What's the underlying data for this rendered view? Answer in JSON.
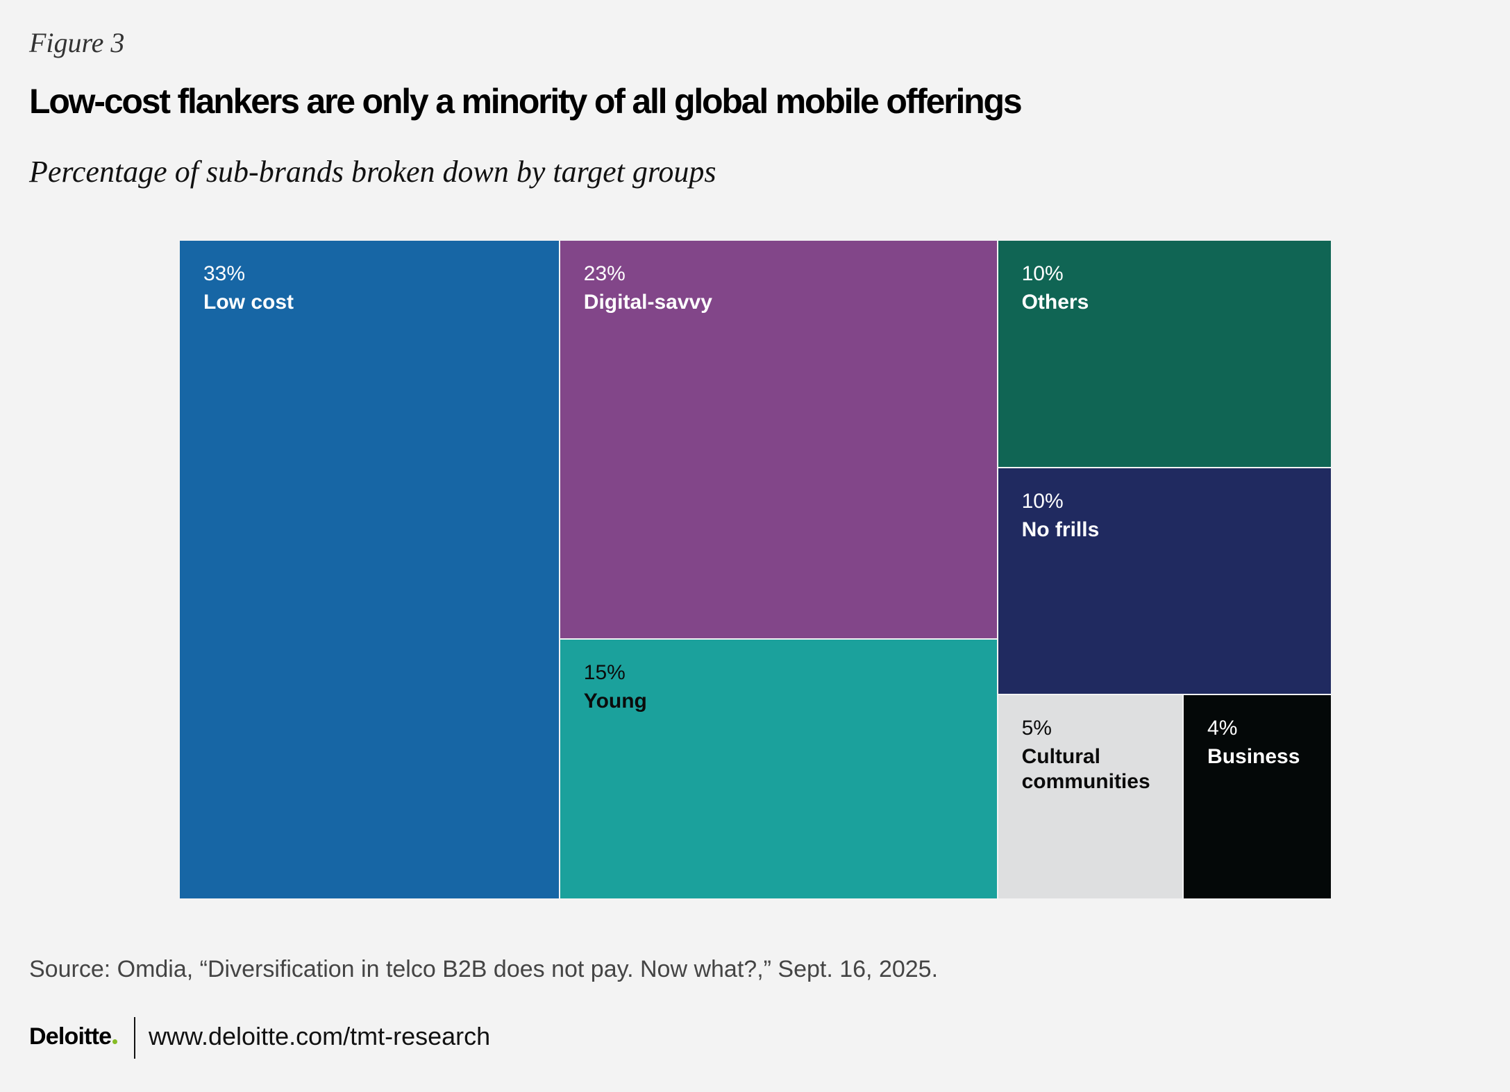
{
  "header": {
    "figure_label": "Figure 3",
    "title": "Low-cost flankers are only a minority of all global mobile offerings",
    "subtitle": "Percentage of sub-brands broken down by target groups"
  },
  "chart_data": {
    "type": "treemap",
    "title": "Low-cost flankers are only a minority of all global mobile offerings",
    "subtitle": "Percentage of sub-brands broken down by target groups",
    "unit": "%",
    "items": [
      {
        "label": "Low cost",
        "value": 33,
        "value_label": "33%",
        "color": "#1766a5",
        "text_color": "#ffffff"
      },
      {
        "label": "Digital-savvy",
        "value": 23,
        "value_label": "23%",
        "color": "#824689",
        "text_color": "#ffffff"
      },
      {
        "label": "Young",
        "value": 15,
        "value_label": "15%",
        "color": "#1ba19c",
        "text_color": "#0b0b0b"
      },
      {
        "label": "Others",
        "value": 10,
        "value_label": "10%",
        "color": "#106554",
        "text_color": "#ffffff"
      },
      {
        "label": "No frills",
        "value": 10,
        "value_label": "10%",
        "color": "#202a60",
        "text_color": "#ffffff"
      },
      {
        "label": "Cultural\ncommunities",
        "value": 5,
        "value_label": "5%",
        "color": "#dedfe0",
        "text_color": "#0b0b0b"
      },
      {
        "label": "Business",
        "value": 4,
        "value_label": "4%",
        "color": "#040808",
        "text_color": "#ffffff"
      }
    ]
  },
  "footer": {
    "source": "Source: Omdia, “Diversification in telco B2B does not pay. Now what?,” Sept. 16, 2025.",
    "brand": "Deloitte",
    "url": "www.deloitte.com/tmt-research",
    "brand_dot_color": "#86bc25"
  }
}
